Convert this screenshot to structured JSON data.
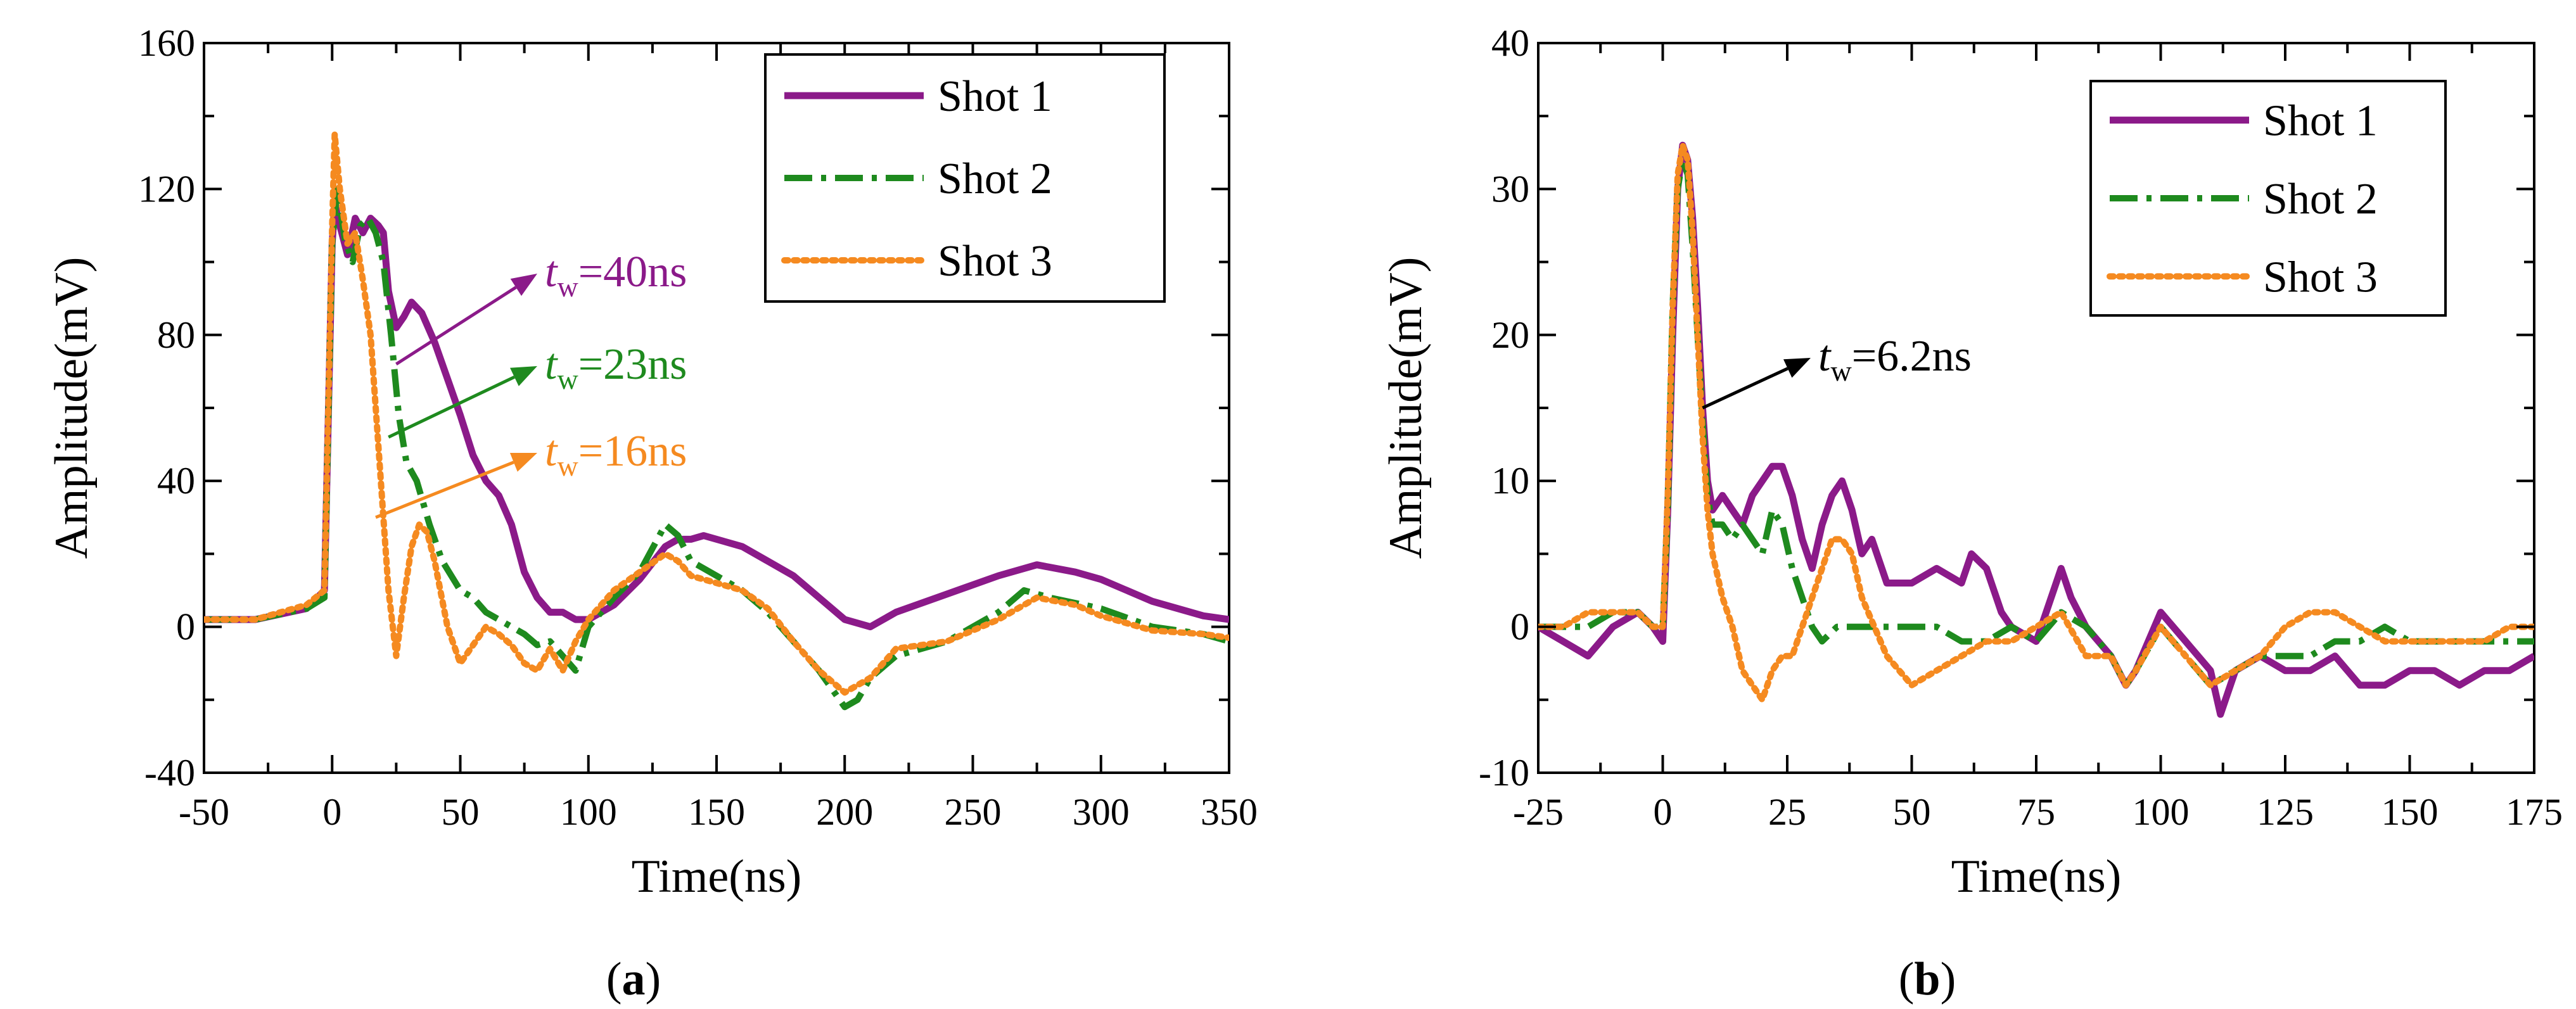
{
  "chart_data": [
    {
      "id": "a",
      "type": "line",
      "caption_letter": "a",
      "xlabel": "Time(ns)",
      "ylabel": "Amplitude(mV)",
      "xlim": [
        -50,
        350
      ],
      "ylim": [
        -40,
        160
      ],
      "xticks": [
        -50,
        0,
        50,
        100,
        150,
        200,
        250,
        300,
        350
      ],
      "yticks": [
        -40,
        0,
        40,
        80,
        120,
        160
      ],
      "grid": false,
      "legend_position": "top-right",
      "series": [
        {
          "name": "Shot 1",
          "color": "#8B1A89",
          "style": "solid",
          "x": [
            -50,
            -30,
            -10,
            -3,
            0,
            1,
            3,
            6,
            9,
            12,
            15,
            18,
            20,
            22,
            25,
            28,
            31,
            35,
            40,
            45,
            50,
            55,
            60,
            65,
            70,
            75,
            80,
            85,
            90,
            95,
            100,
            110,
            120,
            130,
            135,
            140,
            145,
            150,
            160,
            170,
            180,
            190,
            200,
            210,
            220,
            240,
            260,
            275,
            290,
            300,
            320,
            340,
            350
          ],
          "y": [
            2,
            2,
            5,
            10,
            105,
            116,
            110,
            102,
            112,
            108,
            112,
            110,
            108,
            92,
            82,
            85,
            89,
            86,
            78,
            68,
            58,
            47,
            40,
            36,
            28,
            15,
            8,
            4,
            4,
            2,
            2,
            6,
            13,
            22,
            24,
            24,
            25,
            24,
            22,
            18,
            14,
            8,
            2,
            0,
            4,
            9,
            14,
            17,
            15,
            13,
            7,
            3,
            2
          ]
        },
        {
          "name": "Shot 2",
          "color": "#1E8A1E",
          "style": "dashdot",
          "x": [
            -50,
            -30,
            -10,
            -3,
            0,
            2,
            5,
            8,
            11,
            14,
            17,
            20,
            23,
            26,
            29,
            33,
            38,
            43,
            50,
            55,
            60,
            65,
            70,
            75,
            80,
            85,
            90,
            95,
            100,
            110,
            120,
            130,
            135,
            140,
            150,
            160,
            170,
            180,
            190,
            200,
            205,
            210,
            220,
            240,
            260,
            270,
            280,
            300,
            320,
            340,
            350
          ],
          "y": [
            2,
            2,
            5,
            8,
            105,
            120,
            106,
            100,
            110,
            112,
            108,
            100,
            80,
            58,
            45,
            40,
            28,
            18,
            10,
            8,
            4,
            2,
            0,
            -2,
            -5,
            -4,
            -8,
            -12,
            0,
            8,
            15,
            28,
            25,
            18,
            14,
            10,
            4,
            -4,
            -12,
            -22,
            -20,
            -14,
            -8,
            -4,
            4,
            10,
            8,
            5,
            0,
            -2,
            -4
          ]
        },
        {
          "name": "Shot 3",
          "color": "#F58A20",
          "style": "dotted",
          "x": [
            -50,
            -30,
            -10,
            -3,
            0,
            1,
            3,
            6,
            9,
            12,
            15,
            18,
            20,
            22,
            25,
            28,
            31,
            34,
            37,
            40,
            45,
            50,
            55,
            60,
            65,
            70,
            75,
            80,
            85,
            90,
            95,
            100,
            110,
            120,
            130,
            135,
            140,
            150,
            160,
            170,
            180,
            190,
            200,
            210,
            220,
            240,
            260,
            275,
            290,
            300,
            320,
            340,
            350
          ],
          "y": [
            2,
            2,
            6,
            10,
            110,
            135,
            120,
            105,
            108,
            95,
            80,
            50,
            30,
            10,
            -8,
            8,
            22,
            28,
            26,
            18,
            0,
            -10,
            -5,
            0,
            -2,
            -5,
            -10,
            -12,
            -6,
            -12,
            -4,
            2,
            10,
            15,
            20,
            18,
            14,
            12,
            10,
            5,
            -4,
            -12,
            -18,
            -14,
            -6,
            -4,
            2,
            8,
            6,
            3,
            -1,
            -2,
            -3
          ]
        }
      ],
      "annotations": [
        {
          "var": "t",
          "sub": "w",
          "text": "=40ns",
          "color": "#8B1A89",
          "anchor_x": 25,
          "anchor_y": 72
        },
        {
          "var": "t",
          "sub": "w",
          "text": "=23ns",
          "color": "#1E8A1E",
          "anchor_x": 22,
          "anchor_y": 52
        },
        {
          "var": "t",
          "sub": "w",
          "text": "=16ns",
          "color": "#F58A20",
          "anchor_x": 17,
          "anchor_y": 30
        }
      ]
    },
    {
      "id": "b",
      "type": "line",
      "caption_letter": "b",
      "xlabel": "Time(ns)",
      "ylabel": "Amplitude(mV)",
      "xlim": [
        -25,
        175
      ],
      "ylim": [
        -10,
        40
      ],
      "xticks": [
        -25,
        0,
        25,
        50,
        75,
        100,
        125,
        150,
        175
      ],
      "yticks": [
        -10,
        0,
        10,
        20,
        30,
        40
      ],
      "grid": false,
      "legend_position": "top-right",
      "series": [
        {
          "name": "Shot 1",
          "color": "#8B1A89",
          "style": "solid",
          "x": [
            -25,
            -20,
            -15,
            -10,
            -5,
            -2,
            0,
            1,
            2,
            3,
            4,
            5,
            6,
            7,
            8,
            9,
            10,
            12,
            14,
            16,
            18,
            20,
            22,
            24,
            26,
            28,
            30,
            32,
            34,
            36,
            38,
            40,
            42,
            45,
            50,
            55,
            60,
            62,
            65,
            68,
            70,
            75,
            80,
            82,
            85,
            90,
            93,
            95,
            100,
            105,
            110,
            112,
            115,
            120,
            125,
            130,
            135,
            140,
            145,
            150,
            155,
            160,
            165,
            170,
            175
          ],
          "y": [
            0,
            -1,
            -2,
            0,
            1,
            0,
            -1,
            8,
            20,
            30,
            33,
            32,
            28,
            22,
            15,
            10,
            8,
            9,
            8,
            7,
            9,
            10,
            11,
            11,
            9,
            6,
            4,
            7,
            9,
            10,
            8,
            5,
            6,
            3,
            3,
            4,
            3,
            5,
            4,
            1,
            0,
            -1,
            4,
            2,
            0,
            -2,
            -4,
            -3,
            1,
            -1,
            -3,
            -6,
            -3,
            -2,
            -3,
            -3,
            -2,
            -4,
            -4,
            -3,
            -3,
            -4,
            -3,
            -3,
            -2
          ]
        },
        {
          "name": "Shot 2",
          "color": "#1E8A1E",
          "style": "dashdot",
          "x": [
            -25,
            -20,
            -15,
            -10,
            -5,
            -2,
            0,
            1,
            2,
            3,
            4,
            5,
            6,
            7,
            8,
            9,
            10,
            12,
            14,
            16,
            18,
            20,
            22,
            24,
            26,
            28,
            30,
            32,
            35,
            40,
            45,
            50,
            55,
            60,
            65,
            70,
            75,
            80,
            85,
            90,
            93,
            95,
            100,
            105,
            110,
            115,
            120,
            125,
            130,
            135,
            140,
            145,
            150,
            155,
            160,
            165,
            170,
            175
          ],
          "y": [
            0,
            0,
            0,
            1,
            1,
            0,
            0,
            8,
            22,
            30,
            32,
            31,
            26,
            20,
            14,
            9,
            7,
            7,
            6,
            7,
            6,
            5,
            8,
            7,
            4,
            2,
            0,
            -1,
            0,
            0,
            0,
            0,
            0,
            -1,
            -1,
            0,
            -1,
            1,
            0,
            -2,
            -4,
            -3,
            0,
            -2,
            -4,
            -3,
            -2,
            -2,
            -2,
            -1,
            -1,
            0,
            -1,
            -1,
            -1,
            -1,
            -1,
            -1
          ]
        },
        {
          "name": "Shot 3",
          "color": "#F58A20",
          "style": "dotted",
          "x": [
            -25,
            -20,
            -15,
            -10,
            -5,
            -2,
            0,
            1,
            2,
            3,
            4,
            5,
            6,
            7,
            8,
            9,
            10,
            12,
            14,
            16,
            18,
            20,
            22,
            24,
            26,
            28,
            30,
            32,
            34,
            36,
            38,
            40,
            45,
            50,
            55,
            60,
            65,
            70,
            75,
            80,
            85,
            90,
            93,
            95,
            100,
            105,
            110,
            115,
            120,
            125,
            130,
            135,
            140,
            145,
            150,
            155,
            160,
            165,
            170,
            175
          ],
          "y": [
            0,
            0,
            1,
            1,
            1,
            0,
            0,
            9,
            22,
            31,
            33,
            32,
            27,
            20,
            13,
            8,
            5,
            2,
            0,
            -3,
            -4,
            -5,
            -3,
            -2,
            -2,
            0,
            2,
            4,
            6,
            6,
            5,
            2,
            -2,
            -4,
            -3,
            -2,
            -1,
            -1,
            0,
            1,
            -2,
            -2,
            -4,
            -3,
            0,
            -2,
            -4,
            -3,
            -2,
            0,
            1,
            1,
            0,
            -1,
            -1,
            -1,
            -1,
            -1,
            0,
            0
          ]
        }
      ],
      "annotations": [
        {
          "var": "t",
          "sub": "w",
          "text": "=6.2ns",
          "color": "#000000",
          "anchor_x": 8,
          "anchor_y": 15
        }
      ]
    }
  ]
}
